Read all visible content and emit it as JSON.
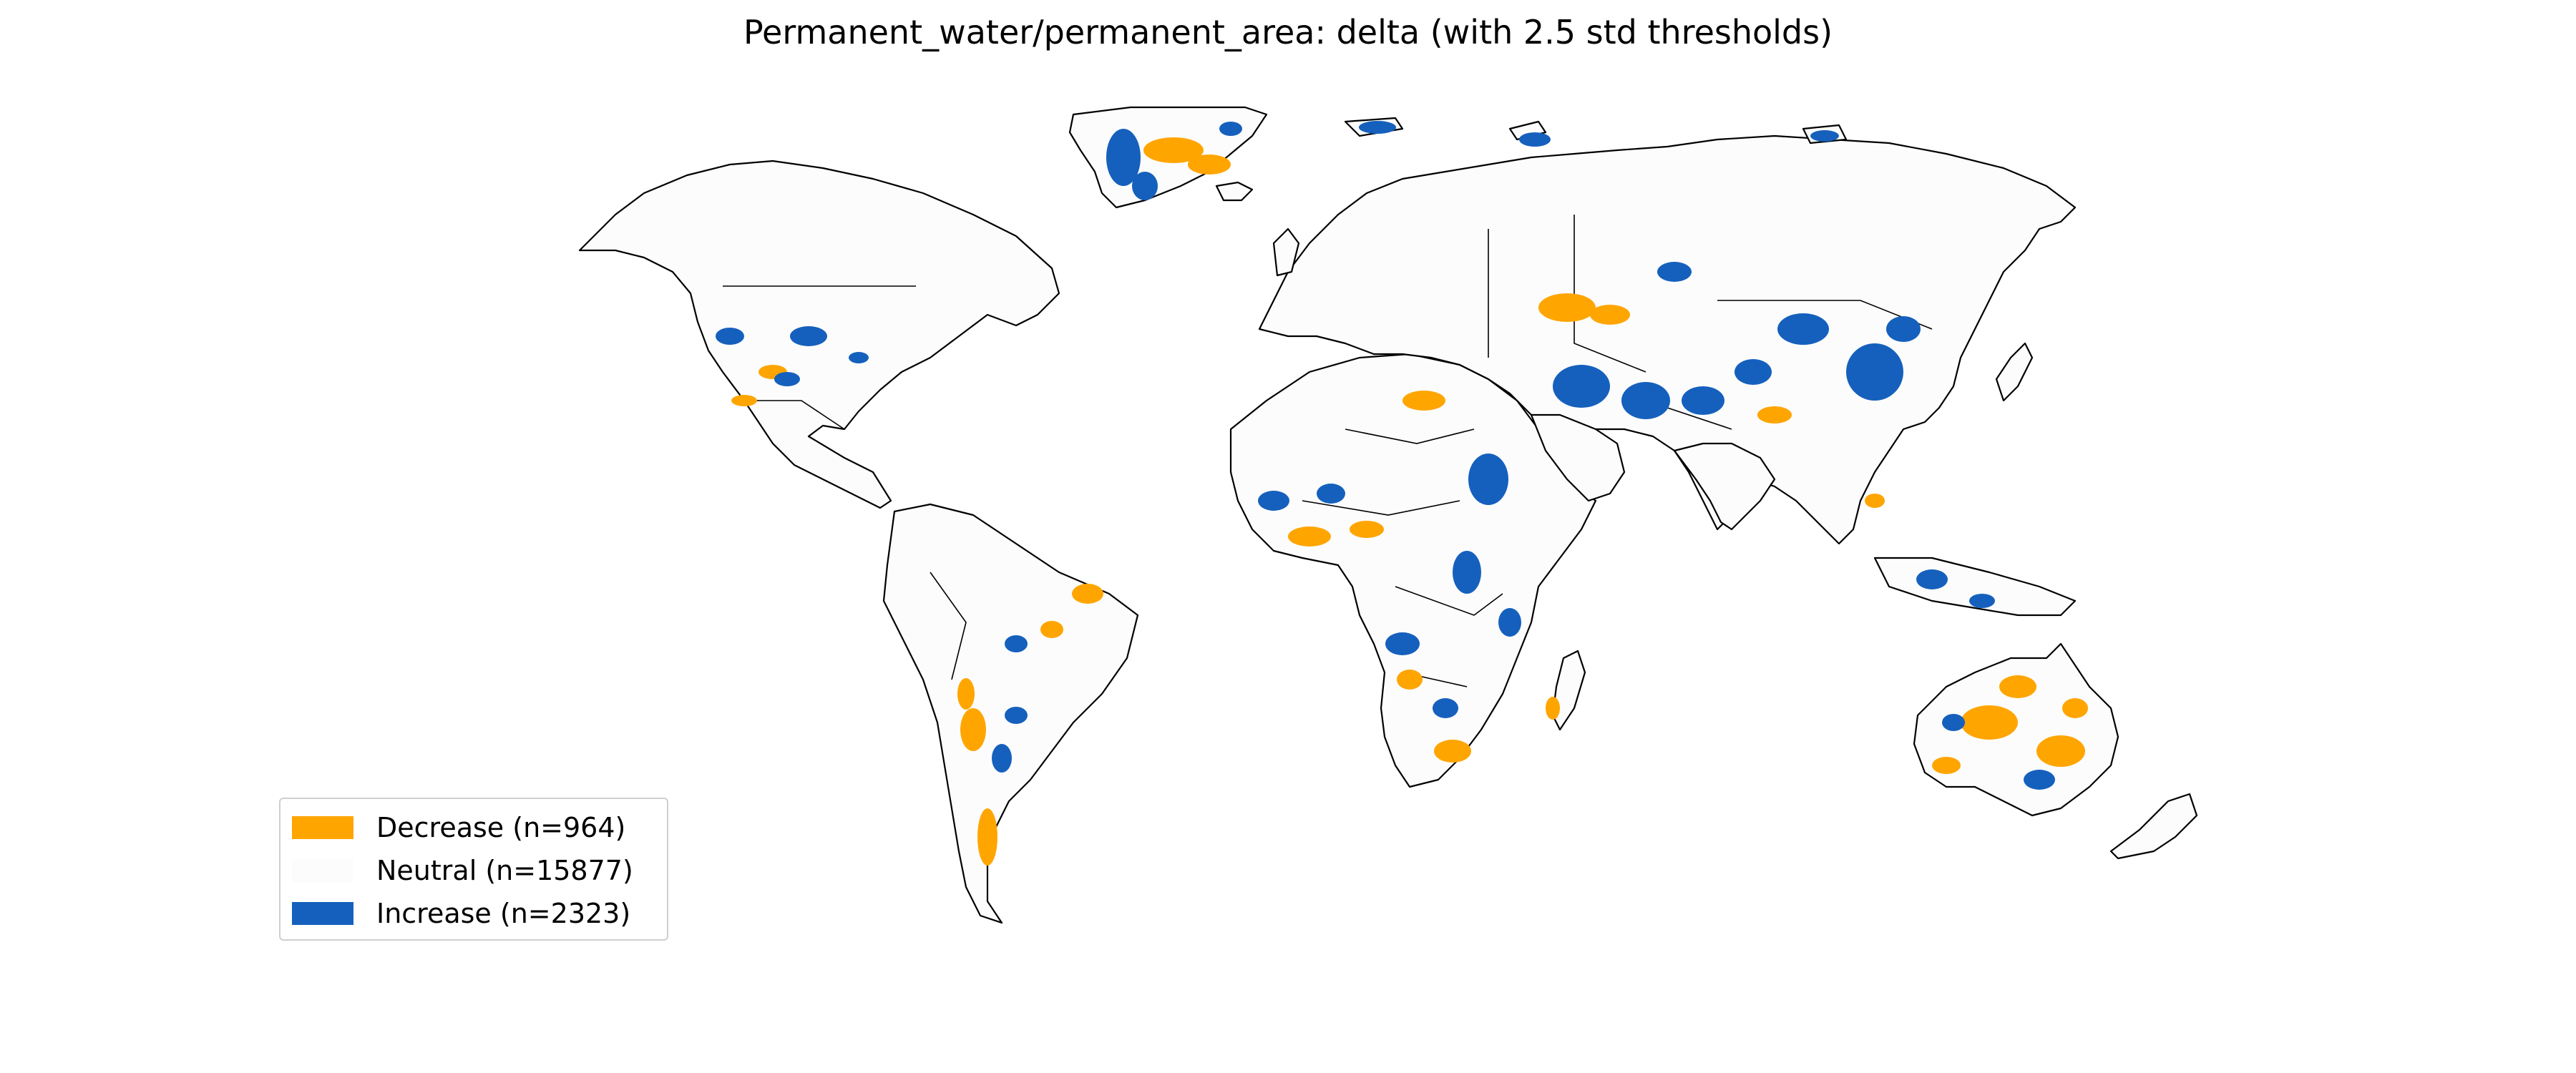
{
  "title": "Permanent_water/permanent_area: delta (with 2.5 std thresholds)",
  "legend": {
    "placement": "lower-left",
    "items": [
      {
        "label": "Decrease (n=964)",
        "color": "#ffa500"
      },
      {
        "label": "Neutral (n=15877)",
        "color": "#fcfcfc"
      },
      {
        "label": "Increase (n=2323)",
        "color": "#1560bd"
      }
    ]
  },
  "colors": {
    "decrease": "#ffa500",
    "neutral": "#fcfcfc",
    "increase": "#1560bd",
    "coastline": "#000000"
  }
}
